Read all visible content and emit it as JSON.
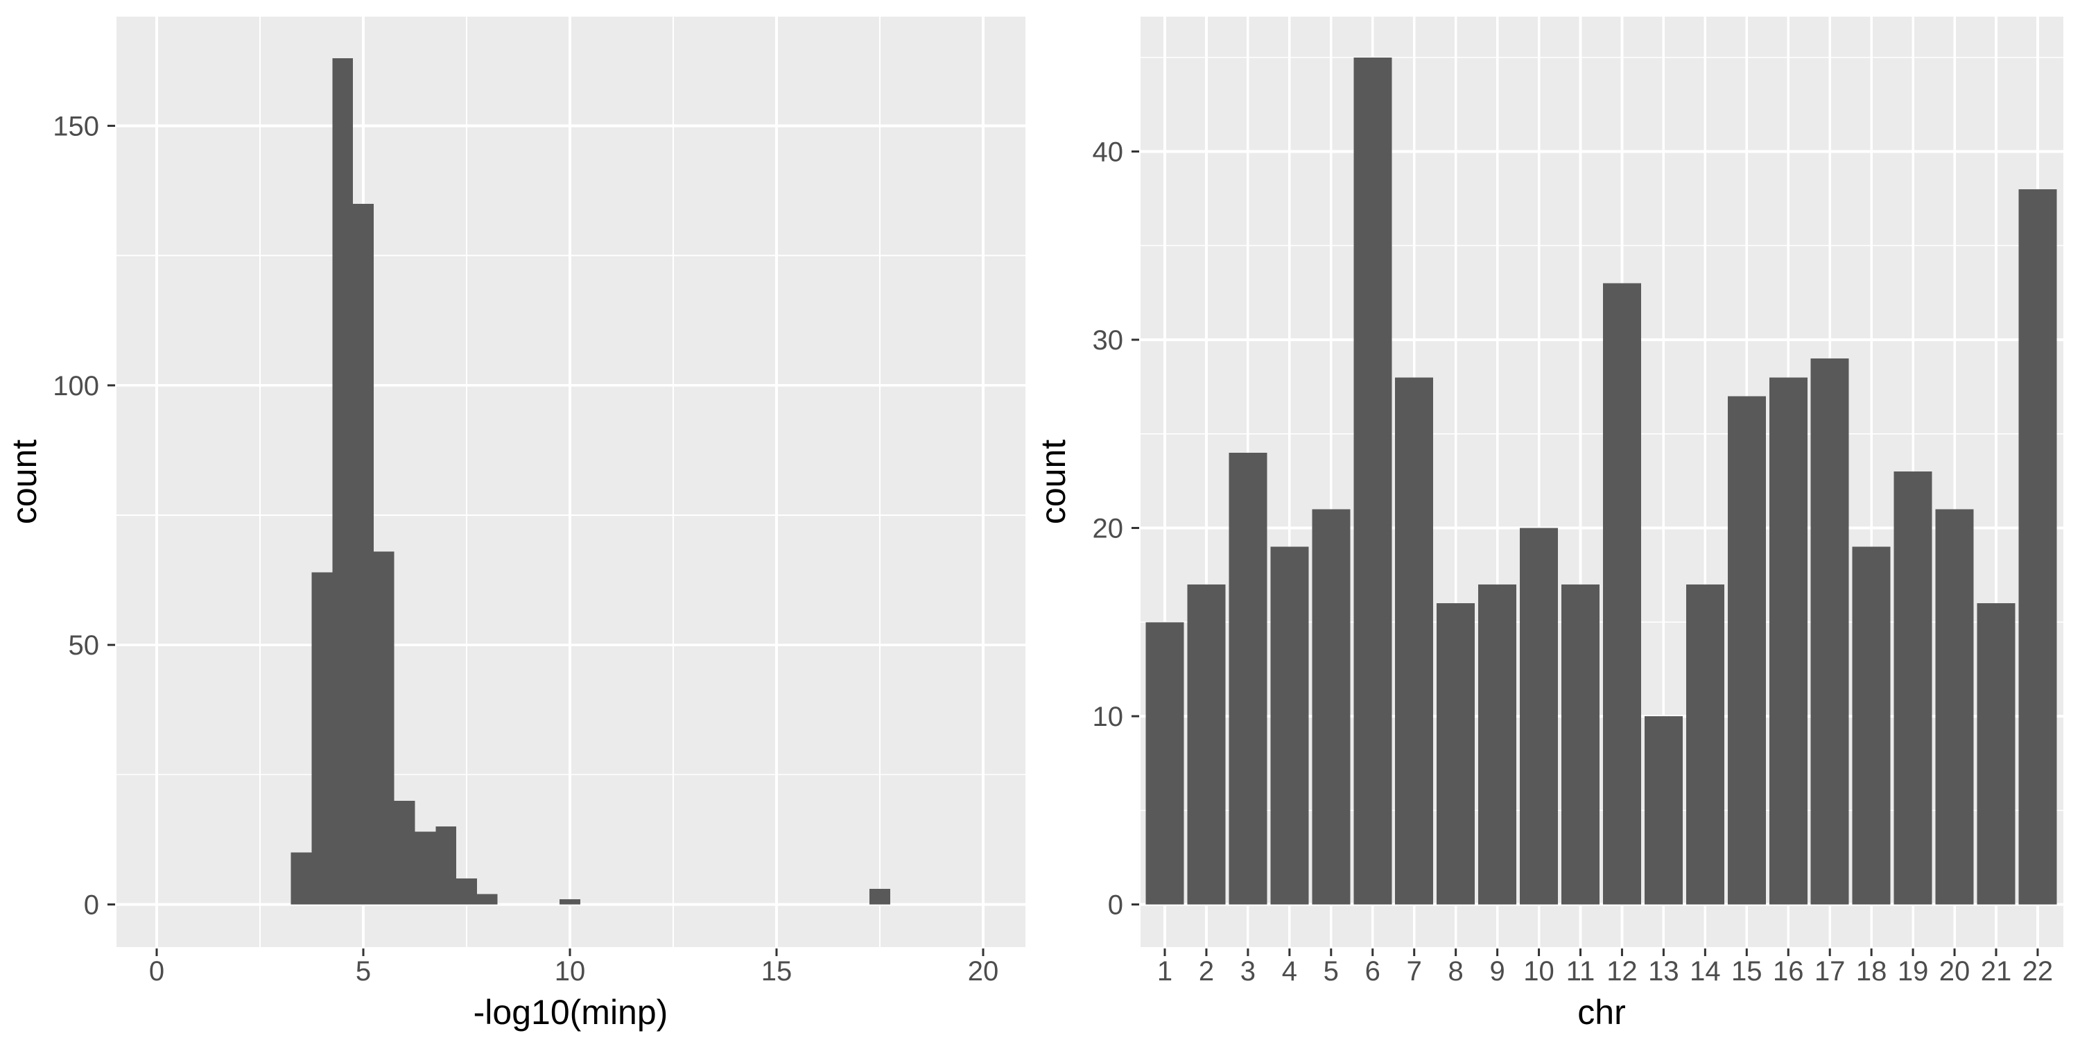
{
  "figure": {
    "background": "#FFFFFF",
    "panel_background": "#EBEBEB",
    "grid_color": "#FFFFFF",
    "bar_fill": "#595959",
    "axis_text_color": "#4D4D4D",
    "axis_title_color": "#000000",
    "tick_color": "#333333"
  },
  "chart_data": [
    {
      "type": "bar",
      "subtype": "histogram",
      "title": "",
      "xlabel": "-log10(minp)",
      "ylabel": "count",
      "x_ticks": [
        0,
        5,
        10,
        15,
        20
      ],
      "x_minor": [
        2.5,
        7.5,
        12.5,
        17.5
      ],
      "y_ticks": [
        0,
        50,
        100,
        150
      ],
      "y_minor": [
        25,
        75,
        125
      ],
      "xlim": [
        -1,
        21
      ],
      "ylim": [
        0,
        171
      ],
      "grid": true,
      "legend": "none",
      "bin_width": 0.5,
      "bins": [
        {
          "x0": 3.25,
          "count": 10
        },
        {
          "x0": 3.75,
          "count": 64
        },
        {
          "x0": 4.25,
          "count": 163
        },
        {
          "x0": 4.75,
          "count": 135
        },
        {
          "x0": 5.25,
          "count": 68
        },
        {
          "x0": 5.75,
          "count": 20
        },
        {
          "x0": 6.25,
          "count": 14
        },
        {
          "x0": 6.75,
          "count": 15
        },
        {
          "x0": 7.25,
          "count": 5
        },
        {
          "x0": 7.75,
          "count": 2
        },
        {
          "x0": 9.75,
          "count": 1
        },
        {
          "x0": 17.25,
          "count": 3
        }
      ]
    },
    {
      "type": "bar",
      "title": "",
      "xlabel": "chr",
      "ylabel": "count",
      "categories": [
        "1",
        "2",
        "3",
        "4",
        "5",
        "6",
        "7",
        "8",
        "9",
        "10",
        "11",
        "12",
        "13",
        "14",
        "15",
        "16",
        "17",
        "18",
        "19",
        "20",
        "21",
        "22"
      ],
      "values": [
        15,
        17,
        24,
        19,
        21,
        45,
        28,
        16,
        17,
        20,
        17,
        33,
        10,
        17,
        27,
        28,
        29,
        19,
        23,
        21,
        16,
        38
      ],
      "y_ticks": [
        0,
        10,
        20,
        30,
        40
      ],
      "y_minor": [
        5,
        15,
        25,
        35,
        45
      ],
      "ylim": [
        0,
        47.25
      ],
      "grid": true,
      "legend": "none"
    }
  ]
}
